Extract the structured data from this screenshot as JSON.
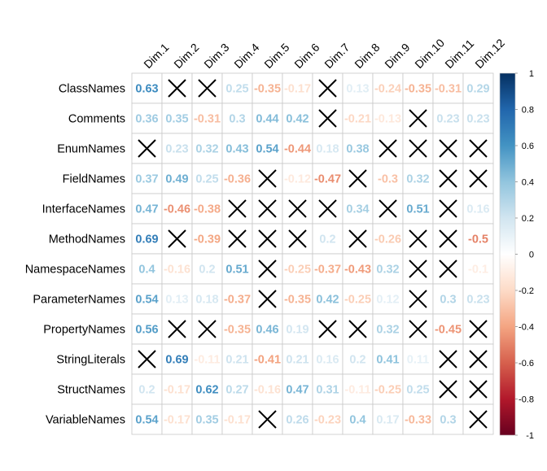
{
  "chart_data": {
    "type": "heatmap",
    "title": "",
    "columns": [
      "Dim.1",
      "Dim.2",
      "Dim.3",
      "Dim.4",
      "Dim.5",
      "Dim.6",
      "Dim.7",
      "Dim.8",
      "Dim.9",
      "Dim.10",
      "Dim.11",
      "Dim.12"
    ],
    "rows": [
      "ClassNames",
      "Comments",
      "EnumNames",
      "FieldNames",
      "InterfaceNames",
      "MethodNames",
      "NamespaceNames",
      "ParameterNames",
      "PropertyNames",
      "StringLiterals",
      "StructNames",
      "VariableNames"
    ],
    "values": [
      [
        0.63,
        null,
        null,
        0.25,
        -0.35,
        -0.17,
        null,
        0.13,
        -0.24,
        -0.35,
        -0.31,
        0.29
      ],
      [
        0.36,
        0.35,
        -0.31,
        0.3,
        0.44,
        0.42,
        null,
        -0.21,
        -0.13,
        null,
        0.23,
        0.23
      ],
      [
        null,
        0.23,
        0.32,
        0.43,
        0.54,
        -0.44,
        0.18,
        0.38,
        null,
        null,
        null,
        null
      ],
      [
        0.37,
        0.49,
        0.25,
        -0.36,
        null,
        -0.12,
        -0.47,
        null,
        -0.3,
        0.32,
        null,
        null
      ],
      [
        0.47,
        -0.46,
        -0.38,
        null,
        null,
        null,
        null,
        0.34,
        null,
        0.51,
        null,
        0.16
      ],
      [
        0.69,
        null,
        -0.39,
        null,
        null,
        null,
        0.2,
        null,
        -0.26,
        null,
        null,
        -0.5
      ],
      [
        0.4,
        -0.16,
        0.2,
        0.51,
        null,
        -0.25,
        -0.37,
        -0.43,
        0.32,
        null,
        null,
        -0.1
      ],
      [
        0.54,
        0.13,
        0.18,
        -0.37,
        null,
        -0.35,
        0.42,
        -0.25,
        0.12,
        null,
        0.3,
        0.23
      ],
      [
        0.56,
        null,
        null,
        -0.35,
        0.46,
        0.19,
        null,
        null,
        0.32,
        null,
        -0.45,
        null
      ],
      [
        null,
        0.69,
        -0.11,
        0.21,
        -0.41,
        0.21,
        0.16,
        0.2,
        0.41,
        0.11,
        null,
        null
      ],
      [
        0.2,
        -0.17,
        0.62,
        0.27,
        -0.16,
        0.47,
        0.31,
        -0.11,
        -0.25,
        0.25,
        null,
        null
      ],
      [
        0.54,
        -0.17,
        0.35,
        -0.17,
        null,
        0.26,
        -0.23,
        0.4,
        0.17,
        -0.33,
        0.3,
        null
      ]
    ],
    "colorbar": {
      "ticks": [
        "1",
        "0.8",
        "0.6",
        "0.4",
        "0.2",
        "0",
        "-0.2",
        "-0.4",
        "-0.6",
        "-0.8",
        "-1"
      ],
      "range": [
        -1,
        1
      ],
      "colors": [
        "#67001F",
        "#B2182B",
        "#D6604D",
        "#F4A582",
        "#FDDBC7",
        "#FFFFFF",
        "#D1E5F0",
        "#92C5DE",
        "#4393C3",
        "#2166AC",
        "#053061"
      ]
    },
    "insignificant_marker": "cross",
    "grid": true,
    "legend_position": "right"
  }
}
